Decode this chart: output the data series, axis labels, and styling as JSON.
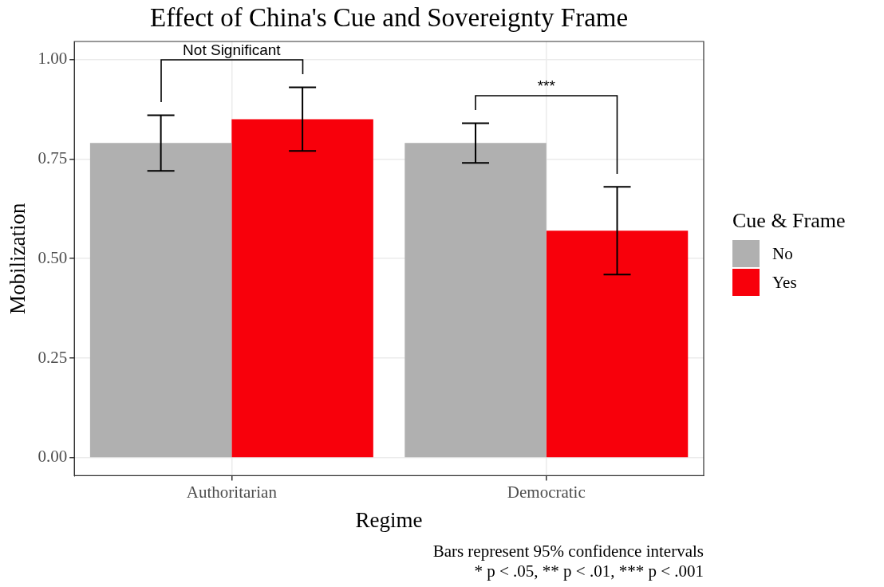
{
  "chart_data": {
    "type": "bar",
    "title": "Effect of China's Cue and Sovereignty Frame",
    "xlabel": "Regime",
    "ylabel": "Mobilization",
    "legend_title": "Cue & Frame",
    "categories": [
      "Authoritarian",
      "Democratic"
    ],
    "series": [
      {
        "name": "No",
        "color": "#b0b0b0",
        "values": [
          0.79,
          0.79
        ],
        "errors": [
          [
            0.72,
            0.86
          ],
          [
            0.74,
            0.84
          ]
        ]
      },
      {
        "name": "Yes",
        "color": "#f8000b",
        "values": [
          0.85,
          0.57
        ],
        "errors": [
          [
            0.77,
            0.93
          ],
          [
            0.46,
            0.68
          ]
        ]
      }
    ],
    "ylim": [
      -0.045,
      1.045
    ],
    "yticks": [
      {
        "value": 0,
        "label": "0.00"
      },
      {
        "value": 0.25,
        "label": "0.25"
      },
      {
        "value": 0.5,
        "label": "0.50"
      },
      {
        "value": 0.75,
        "label": "0.75"
      },
      {
        "value": 1,
        "label": "1.00"
      }
    ],
    "grid": true,
    "legend": "right",
    "annotations": [
      "Not Significant",
      "***",
      "Bars represent 95% confidence intervals",
      "* p < .05, ** p < .01, *** p < .001"
    ]
  }
}
